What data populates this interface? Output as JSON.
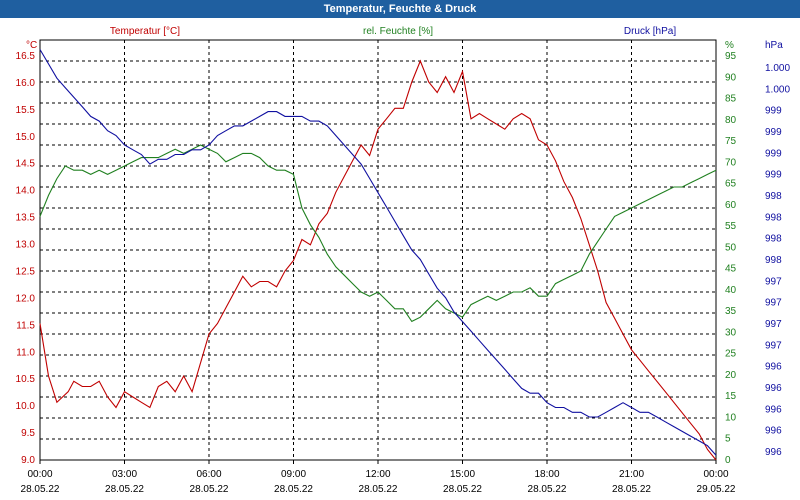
{
  "window": {
    "title": "Temperatur, Feuchte & Druck"
  },
  "chart_data": {
    "type": "line",
    "title": "Temperatur, Feuchte & Druck",
    "grid": true,
    "x": {
      "ticks": [
        {
          "time": "00:00",
          "date": "28.05.22"
        },
        {
          "time": "03:00",
          "date": "28.05.22"
        },
        {
          "time": "06:00",
          "date": "28.05.22"
        },
        {
          "time": "09:00",
          "date": "28.05.22"
        },
        {
          "time": "12:00",
          "date": "28.05.22"
        },
        {
          "time": "15:00",
          "date": "28.05.22"
        },
        {
          "time": "18:00",
          "date": "28.05.22"
        },
        {
          "time": "21:00",
          "date": "28.05.22"
        },
        {
          "time": "00:00",
          "date": "29.05.22"
        }
      ],
      "range_hours": [
        0,
        24
      ]
    },
    "axes": {
      "temperature": {
        "header": "Temperatur [°C]",
        "unit": "°C",
        "color": "#c00000",
        "range": [
          9.0,
          17.0
        ],
        "tick_labels": [
          "16.5",
          "16.0",
          "15.5",
          "15.0",
          "14.5",
          "14.0",
          "13.5",
          "13.0",
          "12.5",
          "12.0",
          "11.5",
          "11.0",
          "10.5",
          "10.0",
          "9.5",
          "9.0"
        ]
      },
      "humidity": {
        "header": "rel. Feuchte [%]",
        "unit": "%",
        "color": "#208020",
        "range": [
          0,
          100
        ],
        "tick_labels": [
          "95",
          "90",
          "85",
          "80",
          "75",
          "70",
          "65",
          "60",
          "55",
          "50",
          "45",
          "40",
          "35",
          "30",
          "25",
          "20",
          "15",
          "10",
          "5",
          "0"
        ]
      },
      "pressure": {
        "header": "Druck [hPa]",
        "unit": "hPa",
        "color": "#1010a0",
        "range": [
          995.8,
          1000.2
        ],
        "tick_labels": [
          "1.000",
          "1.000",
          "999",
          "999",
          "999",
          "999",
          "998",
          "998",
          "998",
          "998",
          "997",
          "997",
          "997",
          "997",
          "996",
          "996",
          "996",
          "996",
          "996"
        ]
      }
    },
    "series": [
      {
        "name": "Temperatur [°C]",
        "axis": "temperature",
        "color": "#c00000",
        "x": [
          0,
          0.3,
          0.6,
          1.0,
          1.2,
          1.5,
          1.8,
          2.1,
          2.4,
          2.7,
          3.0,
          3.3,
          3.6,
          3.9,
          4.2,
          4.5,
          4.8,
          5.1,
          5.4,
          6.0,
          6.3,
          6.6,
          6.9,
          7.2,
          7.5,
          7.8,
          8.1,
          8.4,
          8.7,
          9.0,
          9.3,
          9.6,
          9.9,
          10.2,
          10.5,
          10.8,
          11.1,
          11.4,
          11.7,
          12.0,
          12.3,
          12.6,
          12.9,
          13.2,
          13.5,
          13.8,
          14.1,
          14.4,
          14.7,
          15.0,
          15.3,
          15.6,
          15.9,
          16.2,
          16.5,
          16.8,
          17.1,
          17.4,
          17.7,
          18.0,
          18.3,
          18.6,
          18.9,
          19.2,
          19.5,
          19.8,
          20.1,
          20.4,
          20.7,
          21.0,
          21.3,
          21.6,
          21.9,
          22.2,
          22.5,
          22.8,
          23.1,
          23.4,
          23.7,
          24.0
        ],
        "values": [
          11.6,
          10.6,
          10.1,
          10.3,
          10.5,
          10.4,
          10.4,
          10.5,
          10.2,
          10.0,
          10.3,
          10.2,
          10.1,
          10.0,
          10.4,
          10.5,
          10.3,
          10.6,
          10.3,
          11.4,
          11.6,
          11.9,
          12.2,
          12.5,
          12.3,
          12.4,
          12.4,
          12.3,
          12.6,
          12.8,
          13.2,
          13.1,
          13.5,
          13.7,
          14.1,
          14.4,
          14.7,
          15.0,
          14.8,
          15.3,
          15.5,
          15.7,
          15.7,
          16.2,
          16.6,
          16.2,
          16.0,
          16.3,
          16.0,
          16.4,
          15.5,
          15.6,
          15.5,
          15.4,
          15.3,
          15.5,
          15.6,
          15.5,
          15.1,
          15.0,
          14.7,
          14.3,
          14.0,
          13.6,
          13.1,
          12.6,
          12.0,
          11.7,
          11.4,
          11.1,
          10.9,
          10.7,
          10.5,
          10.3,
          10.1,
          9.9,
          9.7,
          9.5,
          9.2,
          9.0
        ]
      },
      {
        "name": "rel. Feuchte [%]",
        "axis": "humidity",
        "color": "#208020",
        "x": [
          0,
          0.3,
          0.6,
          0.9,
          1.2,
          1.5,
          1.8,
          2.1,
          2.4,
          2.7,
          3.0,
          3.3,
          3.6,
          3.9,
          4.2,
          4.5,
          4.8,
          5.1,
          5.4,
          5.7,
          6.0,
          6.3,
          6.6,
          6.9,
          7.2,
          7.5,
          7.8,
          8.1,
          8.4,
          8.7,
          9.0,
          9.3,
          9.6,
          9.9,
          10.2,
          10.5,
          10.8,
          11.1,
          11.4,
          11.7,
          12.0,
          12.3,
          12.6,
          12.9,
          13.2,
          13.5,
          13.8,
          14.1,
          14.4,
          14.7,
          15.0,
          15.3,
          15.6,
          15.9,
          16.2,
          16.5,
          16.8,
          17.1,
          17.4,
          17.7,
          18.0,
          18.3,
          18.6,
          18.9,
          19.2,
          19.5,
          19.8,
          20.1,
          20.4,
          20.7,
          21.0,
          21.3,
          21.6,
          21.9,
          22.2,
          22.5,
          22.8,
          23.1,
          23.4,
          23.7,
          24.0
        ],
        "values": [
          58,
          63,
          67,
          70,
          69,
          69,
          68,
          69,
          68,
          69,
          70,
          71,
          72,
          72,
          72,
          73,
          74,
          73,
          74,
          75,
          74,
          73,
          71,
          72,
          73,
          73,
          72,
          70,
          69,
          69,
          68,
          60,
          56,
          53,
          49,
          46,
          44,
          42,
          40,
          39,
          40,
          38,
          36,
          36,
          33,
          34,
          36,
          38,
          36,
          35,
          34,
          37,
          38,
          39,
          38,
          39,
          40,
          40,
          41,
          39,
          39,
          42,
          43,
          44,
          45,
          49,
          52,
          55,
          58,
          59,
          60,
          61,
          62,
          63,
          64,
          65,
          65,
          66,
          67,
          68,
          69
        ]
      },
      {
        "name": "Druck [hPa]",
        "axis": "pressure",
        "color": "#1010a0",
        "x": [
          0,
          0.3,
          0.6,
          0.9,
          1.2,
          1.5,
          1.8,
          2.1,
          2.4,
          2.7,
          3.0,
          3.3,
          3.6,
          3.9,
          4.2,
          4.5,
          4.8,
          5.1,
          5.4,
          5.7,
          6.0,
          6.3,
          6.6,
          6.9,
          7.2,
          7.5,
          7.8,
          8.1,
          8.4,
          8.7,
          9.0,
          9.3,
          9.6,
          9.9,
          10.2,
          10.5,
          10.8,
          11.1,
          11.4,
          11.7,
          12.0,
          12.3,
          12.6,
          12.9,
          13.2,
          13.5,
          13.8,
          14.1,
          14.4,
          14.7,
          15.0,
          15.3,
          15.6,
          15.9,
          16.2,
          16.5,
          16.8,
          17.1,
          17.4,
          17.7,
          18.0,
          18.3,
          18.6,
          18.9,
          19.2,
          19.5,
          19.8,
          20.1,
          20.4,
          20.7,
          21.0,
          21.3,
          21.6,
          21.9,
          22.2,
          22.5,
          22.8,
          23.1,
          23.4,
          23.7,
          24.0
        ],
        "values": [
          1000.1,
          999.95,
          999.8,
          999.7,
          999.6,
          999.5,
          999.4,
          999.35,
          999.25,
          999.2,
          999.1,
          999.05,
          999.0,
          998.9,
          998.95,
          998.95,
          999.0,
          999.0,
          999.05,
          999.05,
          999.1,
          999.2,
          999.25,
          999.3,
          999.3,
          999.35,
          999.4,
          999.45,
          999.45,
          999.4,
          999.4,
          999.4,
          999.35,
          999.35,
          999.3,
          999.2,
          999.1,
          999.0,
          998.9,
          998.75,
          998.6,
          998.45,
          998.3,
          998.15,
          998.0,
          997.9,
          997.75,
          997.6,
          997.5,
          997.35,
          997.25,
          997.15,
          997.05,
          996.95,
          996.85,
          996.75,
          996.65,
          996.55,
          996.5,
          996.5,
          996.4,
          996.35,
          996.35,
          996.3,
          996.3,
          996.25,
          996.25,
          996.3,
          996.35,
          996.4,
          996.35,
          996.3,
          996.3,
          996.25,
          996.2,
          996.15,
          996.1,
          996.05,
          996.0,
          995.95,
          995.85
        ]
      }
    ]
  }
}
